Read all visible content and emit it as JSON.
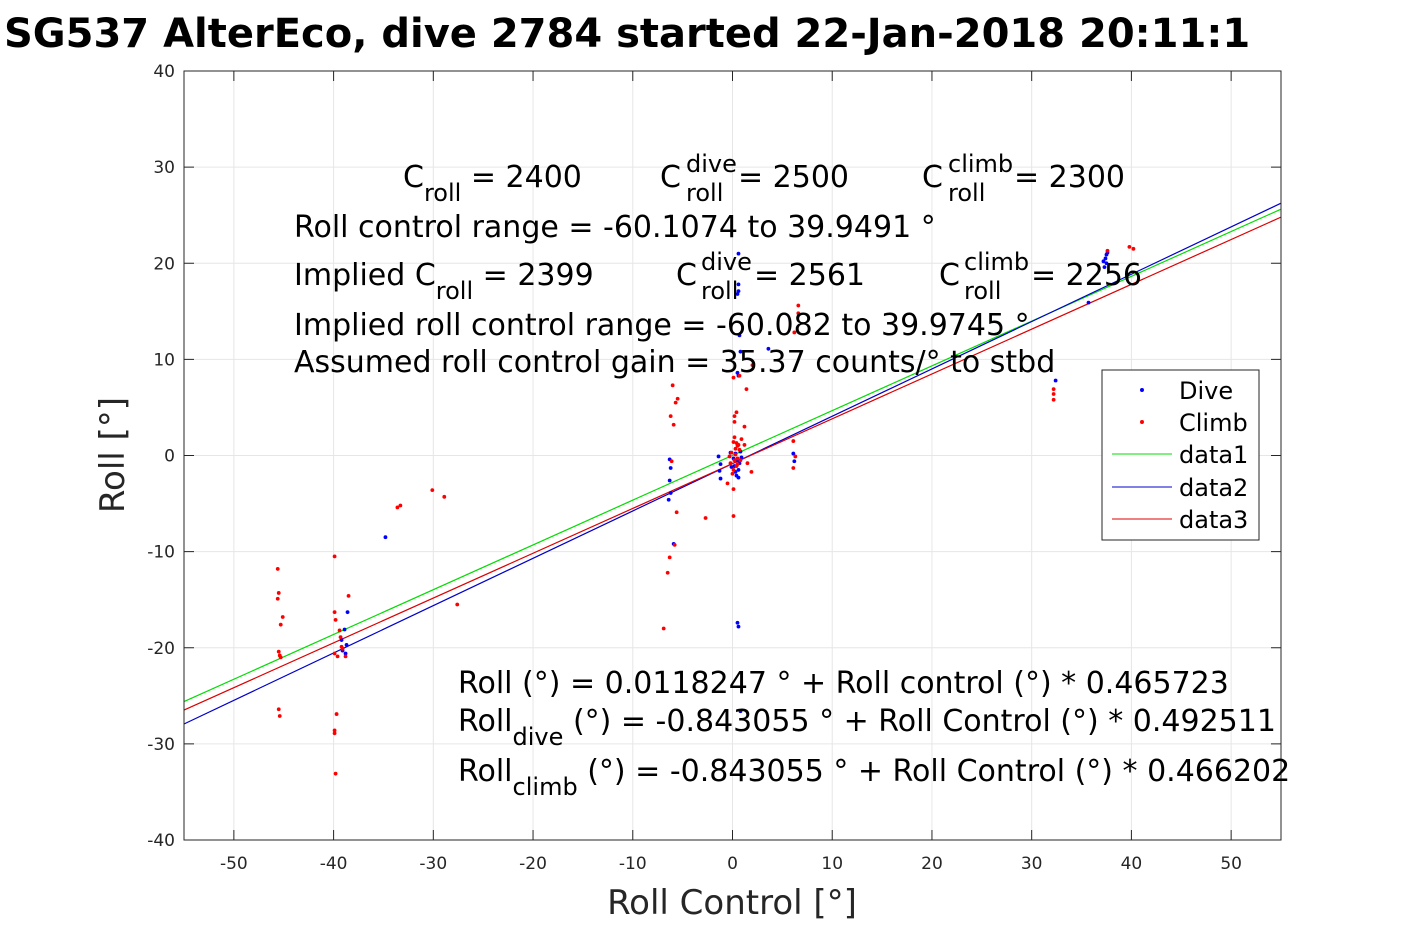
{
  "chart_data": {
    "type": "scatter",
    "title": "SG537 AlterEco, dive 2784 started 22-Jan-2018 20:11:1",
    "xlabel": "Roll Control [°]",
    "ylabel": "Roll [°]",
    "xlim": [
      -55,
      55
    ],
    "ylim": [
      -40,
      40
    ],
    "xticks": [
      -50,
      -40,
      -30,
      -20,
      -10,
      0,
      10,
      20,
      30,
      40,
      50
    ],
    "yticks": [
      -40,
      -30,
      -20,
      -10,
      0,
      10,
      20,
      30,
      40
    ],
    "grid": true,
    "legend_placement": "right",
    "legend": [
      "Dive",
      "Climb",
      "data1",
      "data2",
      "data3"
    ],
    "colors": {
      "dive": "#0000ff",
      "climb": "#ff0000",
      "data1": "#00dd00",
      "data2": "#0000cc",
      "data3": "#dd0000"
    },
    "series": [
      {
        "name": "Dive",
        "marker": "dot",
        "points": [
          [
            -38.6,
            -16.3
          ],
          [
            -38.9,
            -18.1
          ],
          [
            -39.2,
            -19.2
          ],
          [
            -38.7,
            -19.7
          ],
          [
            -39.1,
            -20.3
          ],
          [
            -38.8,
            -20.6
          ],
          [
            -34.8,
            -8.5
          ],
          [
            -6.3,
            -0.4
          ],
          [
            -6.2,
            -1.3
          ],
          [
            -6.3,
            -2.6
          ],
          [
            -6.2,
            -3.9
          ],
          [
            -6.4,
            -4.6
          ],
          [
            -5.9,
            -9.2
          ],
          [
            -1.4,
            -0.1
          ],
          [
            -1.2,
            -0.9
          ],
          [
            -1.3,
            -1.6
          ],
          [
            -1.2,
            -2.4
          ],
          [
            -0.2,
            0.3
          ],
          [
            0.1,
            -0.3
          ],
          [
            0.3,
            0.2
          ],
          [
            0.5,
            -0.5
          ],
          [
            0.2,
            -1.1
          ],
          [
            0.6,
            -1.5
          ],
          [
            0.4,
            -2.1
          ],
          [
            0.7,
            -0.8
          ],
          [
            0.9,
            -0.2
          ],
          [
            0.8,
            0.4
          ],
          [
            0.6,
            -2.3
          ],
          [
            0.3,
            -1.7
          ],
          [
            -0.1,
            -1.2
          ],
          [
            0.6,
            21.0
          ],
          [
            0.6,
            17.8
          ],
          [
            0.6,
            17.1
          ],
          [
            0.5,
            16.8
          ],
          [
            0.7,
            12.5
          ],
          [
            0.8,
            10.8
          ],
          [
            0.5,
            8.6
          ],
          [
            0.6,
            8.3
          ],
          [
            0.5,
            -17.4
          ],
          [
            0.6,
            -17.8
          ],
          [
            0.8,
            -26.6
          ],
          [
            3.6,
            11.1
          ],
          [
            6.1,
            0.2
          ],
          [
            6.2,
            -0.6
          ],
          [
            32.4,
            7.8
          ],
          [
            35.7,
            15.9
          ],
          [
            37.2,
            20.2
          ],
          [
            37.4,
            20.5
          ],
          [
            37.5,
            20.9
          ],
          [
            37.6,
            21.1
          ],
          [
            37.3,
            19.6
          ],
          [
            37.5,
            20.0
          ]
        ]
      },
      {
        "name": "Climb",
        "marker": "dot",
        "points": [
          [
            -45.6,
            -11.8
          ],
          [
            -45.5,
            -14.3
          ],
          [
            -45.6,
            -14.9
          ],
          [
            -45.1,
            -16.8
          ],
          [
            -45.3,
            -17.6
          ],
          [
            -45.5,
            -20.4
          ],
          [
            -45.4,
            -20.8
          ],
          [
            -45.3,
            -21.0
          ],
          [
            -45.5,
            -26.4
          ],
          [
            -45.4,
            -27.1
          ],
          [
            -39.9,
            -10.5
          ],
          [
            -39.9,
            -16.3
          ],
          [
            -39.8,
            -17.1
          ],
          [
            -39.4,
            -18.2
          ],
          [
            -39.3,
            -18.9
          ],
          [
            -39.2,
            -19.9
          ],
          [
            -39.1,
            -20.1
          ],
          [
            -38.8,
            -20.9
          ],
          [
            -39.9,
            -20.6
          ],
          [
            -39.6,
            -20.9
          ],
          [
            -39.7,
            -26.9
          ],
          [
            -39.9,
            -28.6
          ],
          [
            -39.9,
            -28.9
          ],
          [
            -39.8,
            -33.1
          ],
          [
            -38.5,
            -14.6
          ],
          [
            -33.6,
            -5.4
          ],
          [
            -33.3,
            -5.2
          ],
          [
            -30.1,
            -3.6
          ],
          [
            -28.9,
            -4.3
          ],
          [
            -27.6,
            -15.5
          ],
          [
            -6.5,
            -12.2
          ],
          [
            -6.3,
            -10.6
          ],
          [
            -6.9,
            -18.0
          ],
          [
            -6.0,
            7.3
          ],
          [
            -5.7,
            5.5
          ],
          [
            -5.5,
            5.9
          ],
          [
            -6.2,
            4.1
          ],
          [
            -5.9,
            3.2
          ],
          [
            -5.6,
            -5.9
          ],
          [
            -6.1,
            -0.6
          ],
          [
            -5.8,
            -9.3
          ],
          [
            -2.7,
            -6.5
          ],
          [
            -0.1,
            0.3
          ],
          [
            0.1,
            1.4
          ],
          [
            0.3,
            0.7
          ],
          [
            0.2,
            -0.5
          ],
          [
            0.4,
            -1.1
          ],
          [
            0.5,
            -0.3
          ],
          [
            -0.2,
            -0.8
          ],
          [
            0.6,
            1.1
          ],
          [
            0.2,
            1.9
          ],
          [
            0.4,
            1.3
          ],
          [
            0.1,
            -1.5
          ],
          [
            0.5,
            -0.9
          ],
          [
            0.3,
            0.1
          ],
          [
            0.7,
            0.6
          ],
          [
            0.8,
            -0.5
          ],
          [
            -0.3,
            -0.1
          ],
          [
            0.1,
            8.1
          ],
          [
            0.2,
            4.1
          ],
          [
            0.4,
            4.5
          ],
          [
            0.1,
            -3.5
          ],
          [
            0.1,
            -6.3
          ],
          [
            -0.5,
            -2.9
          ],
          [
            0.7,
            8.3
          ],
          [
            0.2,
            3.5
          ],
          [
            0.9,
            1.7
          ],
          [
            0.5,
            1.0
          ],
          [
            0.0,
            -1.9
          ],
          [
            1.2,
            1.1
          ],
          [
            6.1,
            1.5
          ],
          [
            6.3,
            -0.1
          ],
          [
            6.1,
            -1.3
          ],
          [
            6.2,
            12.8
          ],
          [
            6.6,
            14.8
          ],
          [
            6.6,
            15.6
          ],
          [
            32.2,
            5.8
          ],
          [
            32.2,
            6.4
          ],
          [
            32.2,
            6.9
          ],
          [
            37.6,
            21.3
          ],
          [
            39.8,
            21.7
          ],
          [
            40.2,
            21.5
          ],
          [
            2.0,
            9.4
          ],
          [
            1.4,
            6.9
          ],
          [
            1.2,
            3.0
          ],
          [
            1.5,
            -0.8
          ],
          [
            1.9,
            -1.7
          ]
        ]
      },
      {
        "name": "data1",
        "marker": "line",
        "intercept": 0.0118247,
        "slope": 0.465723
      },
      {
        "name": "data2",
        "marker": "line",
        "intercept": -0.843055,
        "slope": 0.492511
      },
      {
        "name": "data3",
        "marker": "line",
        "intercept": -0.843055,
        "slope": 0.466202
      }
    ],
    "annotations_top": {
      "c_roll": {
        "base": "C",
        "sub": "roll",
        "value": " = 2400"
      },
      "c_roll_dive": {
        "base": "C",
        "sup": "dive",
        "sub": "roll",
        "value": " = 2500"
      },
      "c_roll_climb": {
        "base": "C",
        "sup": "climb",
        "sub": "roll",
        "value": " = 2300"
      },
      "range_line": "Roll control range = -60.1074 to 39.9491 °",
      "implied_c_roll": {
        "prefix": "Implied C",
        "sub": "roll",
        "value": " = 2399"
      },
      "implied_c_roll_dive": {
        "base": "C",
        "sup": "dive",
        "sub": "roll",
        "value": " = 2561"
      },
      "implied_c_roll_climb": {
        "base": "C",
        "sup": "climb",
        "sub": "roll",
        "value": " = 2256"
      },
      "implied_range_line": "Implied roll control range = -60.082 to 39.9745 °",
      "gain_line": "Assumed roll control gain = 35.37 counts/° to stbd"
    },
    "annotations_bottom": {
      "fit_all": "Roll (°) = 0.0118247 ° + Roll control (°) * 0.465723",
      "fit_dive": {
        "base": "Roll",
        "sub": "dive",
        "rest": " (°) = -0.843055 ° + Roll Control (°) * 0.492511"
      },
      "fit_climb": {
        "base": "Roll",
        "sub": "climb",
        "rest": " (°) = -0.843055 ° + Roll Control (°) * 0.466202"
      }
    }
  }
}
